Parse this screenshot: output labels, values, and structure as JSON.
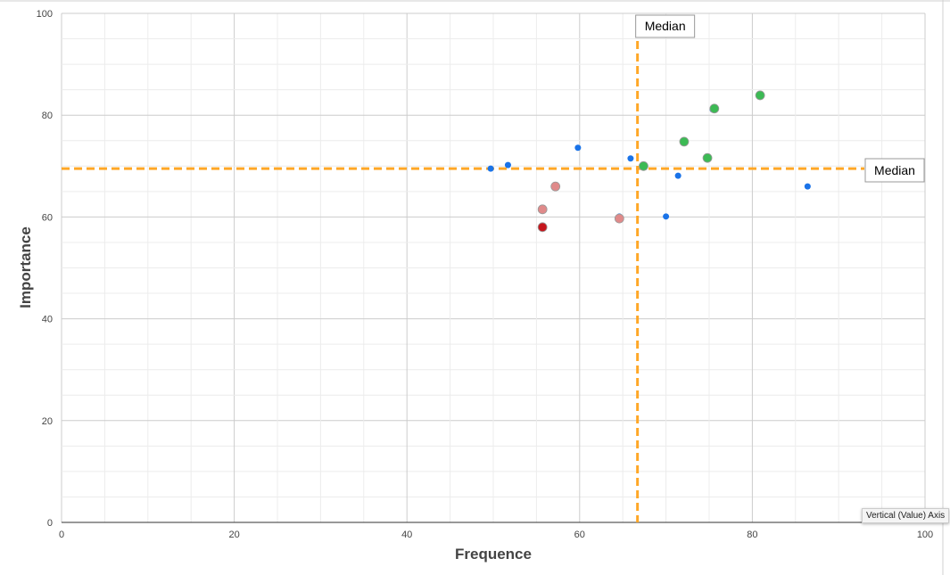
{
  "chart_data": {
    "type": "scatter",
    "title": "",
    "xlabel": "Frequence",
    "ylabel": "Importance",
    "xlim": [
      0,
      100
    ],
    "ylim": [
      0,
      100
    ],
    "xticks": [
      "0",
      "20",
      "40",
      "60",
      "80",
      "100"
    ],
    "yticks": [
      "0",
      "20",
      "40",
      "60",
      "80",
      "100"
    ],
    "grid": true,
    "series": [
      {
        "name": "blue",
        "color": "#1a73e8",
        "radius": 3.5,
        "points": [
          [
            49.7,
            69.5
          ],
          [
            51.7,
            70.2
          ],
          [
            59.8,
            73.6
          ],
          [
            65.9,
            71.5
          ],
          [
            71.4,
            68.1
          ],
          [
            70.0,
            60.1
          ],
          [
            86.4,
            66.0
          ],
          [
            64.6,
            60.1
          ],
          [
            75.4,
            81.1
          ]
        ]
      },
      {
        "name": "green",
        "color": "#3cba54",
        "radius": 5,
        "points": [
          [
            67.4,
            70.0
          ],
          [
            72.1,
            74.8
          ],
          [
            74.8,
            71.6
          ],
          [
            75.6,
            81.3
          ],
          [
            80.9,
            83.9
          ]
        ]
      },
      {
        "name": "pink",
        "color": "#e08a8a",
        "radius": 5,
        "points": [
          [
            57.2,
            66.0
          ],
          [
            55.7,
            61.5
          ],
          [
            64.6,
            59.7
          ]
        ]
      },
      {
        "name": "red",
        "color": "#c5161d",
        "radius": 5,
        "points": [
          [
            55.7,
            58.0
          ]
        ]
      }
    ],
    "reference_lines": {
      "color": "#ffa726",
      "vertical": {
        "value": 66.7,
        "label": "Median"
      },
      "horizontal": {
        "value": 69.5,
        "label": "Median"
      }
    }
  },
  "tooltip": "Vertical (Value) Axis"
}
